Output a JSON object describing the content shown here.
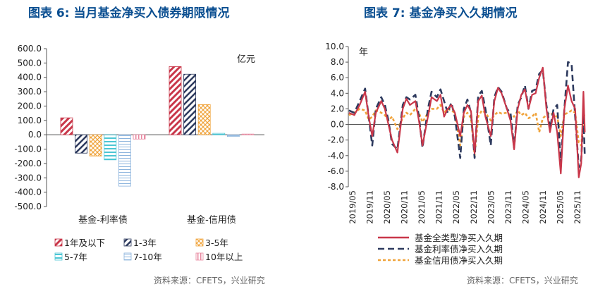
{
  "titles": {
    "left": "图表 6:  当月基金净买入债券期限情况",
    "right": "图表 7:  基金净买入久期情况"
  },
  "sources": {
    "left": "资料来源：CFETS，兴业研究",
    "right": "资料来源：CFETS，兴业研究"
  },
  "colors": {
    "red": "#c9374a",
    "navy": "#2d3a5e",
    "orange": "#f0a33a",
    "cyan": "#4cc6d4",
    "lightblue": "#8cb4dd",
    "pink": "#e888a0"
  },
  "chart_data": [
    {
      "type": "bar",
      "unit_label": "亿元",
      "categories": [
        "基金-利率债",
        "基金-信用债"
      ],
      "ylim": [
        -500,
        600
      ],
      "yticks": [
        "-500.0",
        "-400.0",
        "-300.0",
        "-200.0",
        "-100.0",
        "0.0",
        "100.0",
        "200.0",
        "300.0",
        "400.0",
        "500.0",
        "600.0"
      ],
      "legend_placement": "bottom",
      "series": [
        {
          "name": "1年及以下",
          "values": [
            118,
            475
          ],
          "color": "#c9374a",
          "pattern": "diag-red"
        },
        {
          "name": "1-3年",
          "values": [
            -128,
            422
          ],
          "color": "#2d3a5e",
          "pattern": "diag-navy"
        },
        {
          "name": "3-5年",
          "values": [
            -148,
            210
          ],
          "color": "#f0a33a",
          "pattern": "cross-orange"
        },
        {
          "name": "5-7年",
          "values": [
            -175,
            10
          ],
          "color": "#4cc6d4",
          "pattern": "hbar-cyan"
        },
        {
          "name": "7-10年",
          "values": [
            -358,
            -12
          ],
          "color": "#8cb4dd",
          "pattern": "hline-blue"
        },
        {
          "name": "10年以上",
          "values": [
            -30,
            5
          ],
          "color": "#e888a0",
          "pattern": "vline-pink"
        }
      ]
    },
    {
      "type": "line",
      "unit_label": "年",
      "ylim": [
        -8,
        10
      ],
      "yticks": [
        "-8.0",
        "-6.0",
        "-4.0",
        "-2.0",
        "0.0",
        "2.0",
        "4.0",
        "6.0",
        "8.0",
        "10.0"
      ],
      "x_tick_labels": [
        "2019/05",
        "2019/11",
        "2020/05",
        "2020/11",
        "2021/05",
        "2021/11",
        "2022/05",
        "2022/11",
        "2023/05",
        "2023/11",
        "2024/05",
        "2024/11",
        "2025/05",
        "2025/11"
      ],
      "x_start": "2019/05",
      "x_end": "2025/11",
      "legend_placement": "bottom",
      "series": [
        {
          "name": "基金全类型净买入久期",
          "color": "#c9374a",
          "dash": "solid",
          "points": [
            [
              2019.35,
              1.5
            ],
            [
              2019.5,
              1.2
            ],
            [
              2019.65,
              2.5
            ],
            [
              2019.8,
              4.2
            ],
            [
              2019.9,
              1
            ],
            [
              2020.0,
              -1.5
            ],
            [
              2020.1,
              1.5
            ],
            [
              2020.25,
              3
            ],
            [
              2020.35,
              2
            ],
            [
              2020.45,
              0
            ],
            [
              2020.55,
              -2
            ],
            [
              2020.7,
              -3.6
            ],
            [
              2020.85,
              2
            ],
            [
              2020.95,
              3.3
            ],
            [
              2021.05,
              2.5
            ],
            [
              2021.2,
              3
            ],
            [
              2021.3,
              0.5
            ],
            [
              2021.4,
              -2.7
            ],
            [
              2021.55,
              1
            ],
            [
              2021.65,
              3.5
            ],
            [
              2021.8,
              3
            ],
            [
              2021.9,
              3.8
            ],
            [
              2022.0,
              1
            ],
            [
              2022.1,
              2
            ],
            [
              2022.2,
              2.5
            ],
            [
              2022.3,
              1.5
            ],
            [
              2022.45,
              -1.5
            ],
            [
              2022.55,
              1.5
            ],
            [
              2022.65,
              2.5
            ],
            [
              2022.75,
              1.7
            ],
            [
              2022.85,
              -3.7
            ],
            [
              2022.95,
              3
            ],
            [
              2023.05,
              3.7
            ],
            [
              2023.15,
              1
            ],
            [
              2023.3,
              -1.5
            ],
            [
              2023.4,
              3
            ],
            [
              2023.5,
              4.7
            ],
            [
              2023.6,
              4
            ],
            [
              2023.75,
              2
            ],
            [
              2023.85,
              0.5
            ],
            [
              2023.95,
              -3.2
            ],
            [
              2024.05,
              2
            ],
            [
              2024.15,
              3.8
            ],
            [
              2024.25,
              4.5
            ],
            [
              2024.35,
              2
            ],
            [
              2024.45,
              3.8
            ],
            [
              2024.55,
              4
            ],
            [
              2024.65,
              6
            ],
            [
              2024.75,
              7.3
            ],
            [
              2024.85,
              2
            ],
            [
              2024.95,
              -1
            ],
            [
              2025.05,
              1.5
            ],
            [
              2025.15,
              -1
            ],
            [
              2025.25,
              -6.3
            ],
            [
              2025.35,
              2
            ],
            [
              2025.45,
              5
            ],
            [
              2025.55,
              3
            ],
            [
              2025.65,
              2
            ],
            [
              2025.75,
              -6.8
            ],
            [
              2025.82,
              -5
            ],
            [
              2025.88,
              4.2
            ],
            [
              2025.92,
              -1
            ]
          ]
        },
        {
          "name": "基金利率债净买入久期",
          "color": "#2d3a5e",
          "dash": "dash",
          "points": [
            [
              2019.35,
              1.8
            ],
            [
              2019.5,
              1.5
            ],
            [
              2019.65,
              3
            ],
            [
              2019.8,
              4.6
            ],
            [
              2019.9,
              1
            ],
            [
              2020.0,
              -2.7
            ],
            [
              2020.1,
              2
            ],
            [
              2020.25,
              3.5
            ],
            [
              2020.35,
              2.5
            ],
            [
              2020.45,
              0.5
            ],
            [
              2020.55,
              -2.5
            ],
            [
              2020.7,
              -3.2
            ],
            [
              2020.85,
              2.5
            ],
            [
              2020.95,
              3.5
            ],
            [
              2021.05,
              3.2
            ],
            [
              2021.2,
              3.8
            ],
            [
              2021.3,
              1
            ],
            [
              2021.4,
              -3
            ],
            [
              2021.55,
              2
            ],
            [
              2021.65,
              4.2
            ],
            [
              2021.8,
              3.5
            ],
            [
              2021.9,
              4.5
            ],
            [
              2022.0,
              3
            ],
            [
              2022.1,
              1.5
            ],
            [
              2022.2,
              2.8
            ],
            [
              2022.3,
              1
            ],
            [
              2022.45,
              -4.3
            ],
            [
              2022.55,
              2
            ],
            [
              2022.65,
              3.2
            ],
            [
              2022.75,
              1.5
            ],
            [
              2022.85,
              -4.3
            ],
            [
              2022.95,
              3.7
            ],
            [
              2023.05,
              4.3
            ],
            [
              2023.15,
              2
            ],
            [
              2023.3,
              -2.7
            ],
            [
              2023.4,
              3.5
            ],
            [
              2023.5,
              4.8
            ],
            [
              2023.6,
              4.2
            ],
            [
              2023.75,
              2
            ],
            [
              2023.85,
              1.5
            ],
            [
              2023.95,
              -3
            ],
            [
              2024.05,
              2.5
            ],
            [
              2024.15,
              3.5
            ],
            [
              2024.25,
              5
            ],
            [
              2024.35,
              2
            ],
            [
              2024.45,
              4.3
            ],
            [
              2024.55,
              4.5
            ],
            [
              2024.65,
              6.5
            ],
            [
              2024.75,
              7
            ],
            [
              2024.85,
              2.5
            ],
            [
              2024.95,
              -0.5
            ],
            [
              2025.05,
              2
            ],
            [
              2025.15,
              2.5
            ],
            [
              2025.25,
              -5
            ],
            [
              2025.35,
              2
            ],
            [
              2025.45,
              8
            ],
            [
              2025.55,
              7.8
            ],
            [
              2025.65,
              1
            ],
            [
              2025.75,
              -5.5
            ],
            [
              2025.82,
              -4.5
            ],
            [
              2025.88,
              1.2
            ],
            [
              2025.92,
              -4.2
            ]
          ]
        },
        {
          "name": "基金信用债净买入久期",
          "color": "#f0a33a",
          "dash": "dot",
          "points": [
            [
              2019.35,
              1.2
            ],
            [
              2019.5,
              1.5
            ],
            [
              2019.65,
              2
            ],
            [
              2019.8,
              1.8
            ],
            [
              2019.9,
              0.6
            ],
            [
              2020.0,
              1
            ],
            [
              2020.1,
              1.8
            ],
            [
              2020.25,
              1.5
            ],
            [
              2020.35,
              1.2
            ],
            [
              2020.45,
              0.5
            ],
            [
              2020.55,
              1
            ],
            [
              2020.7,
              -0.6
            ],
            [
              2020.85,
              0.8
            ],
            [
              2020.95,
              1.5
            ],
            [
              2021.05,
              1.2
            ],
            [
              2021.2,
              2
            ],
            [
              2021.3,
              1.5
            ],
            [
              2021.4,
              0.3
            ],
            [
              2021.55,
              1.5
            ],
            [
              2021.65,
              2
            ],
            [
              2021.8,
              2
            ],
            [
              2021.9,
              2.5
            ],
            [
              2022.0,
              1.5
            ],
            [
              2022.1,
              2
            ],
            [
              2022.2,
              1.8
            ],
            [
              2022.3,
              1.5
            ],
            [
              2022.45,
              -2.7
            ],
            [
              2022.55,
              1
            ],
            [
              2022.65,
              1.5
            ],
            [
              2022.75,
              0.8
            ],
            [
              2022.85,
              -4
            ],
            [
              2022.95,
              1
            ],
            [
              2023.05,
              1.8
            ],
            [
              2023.15,
              1.5
            ],
            [
              2023.3,
              0.5
            ],
            [
              2023.4,
              1.2
            ],
            [
              2023.5,
              1.6
            ],
            [
              2023.6,
              1.4
            ],
            [
              2023.75,
              1.5
            ],
            [
              2023.85,
              1.2
            ],
            [
              2023.95,
              1
            ],
            [
              2024.05,
              1.8
            ],
            [
              2024.15,
              1.2
            ],
            [
              2024.25,
              1.5
            ],
            [
              2024.35,
              0.8
            ],
            [
              2024.45,
              1
            ],
            [
              2024.55,
              1.5
            ],
            [
              2024.65,
              -1
            ],
            [
              2024.75,
              0.8
            ],
            [
              2024.85,
              1.2
            ],
            [
              2024.95,
              1.5
            ],
            [
              2025.05,
              1.2
            ],
            [
              2025.15,
              1
            ],
            [
              2025.25,
              -1.5
            ],
            [
              2025.35,
              1.3
            ],
            [
              2025.45,
              1.5
            ],
            [
              2025.55,
              1.8
            ],
            [
              2025.65,
              1.5
            ],
            [
              2025.75,
              -2.3
            ],
            [
              2025.82,
              -2.7
            ],
            [
              2025.88,
              0.8
            ],
            [
              2025.92,
              1.5
            ]
          ]
        }
      ]
    }
  ]
}
